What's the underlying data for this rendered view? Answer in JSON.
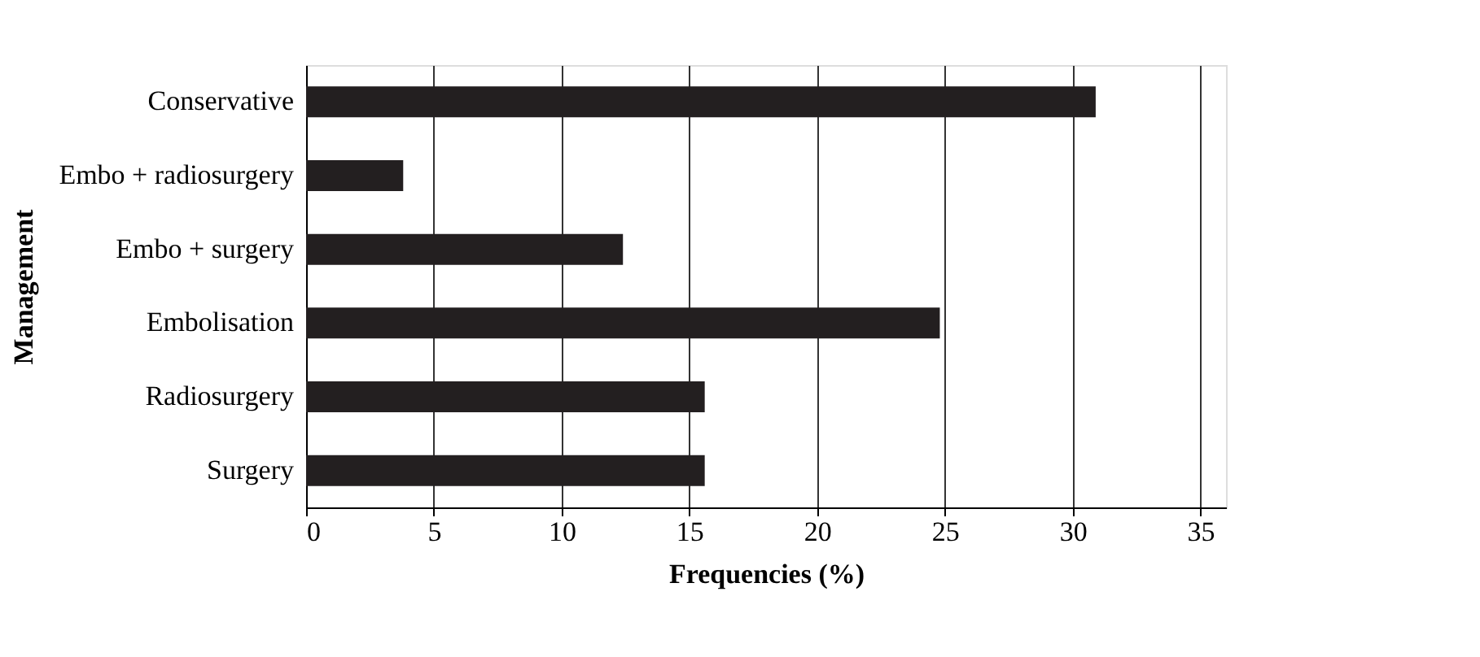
{
  "chart_data": {
    "type": "bar",
    "orientation": "horizontal",
    "xlabel": "Frequencies (%)",
    "ylabel": "Management",
    "categories": [
      "Conservative",
      "Embo + radiosurgery",
      "Embo + surgery",
      "Embolisation",
      "Radiosurgery",
      "Surgery"
    ],
    "values": [
      30.9,
      3.8,
      12.4,
      24.8,
      15.6,
      15.6
    ],
    "color": "#231f20",
    "xlim": [
      0,
      36
    ],
    "xticks": [
      0,
      5,
      10,
      15,
      20,
      25,
      30,
      35
    ],
    "grid": "x"
  }
}
